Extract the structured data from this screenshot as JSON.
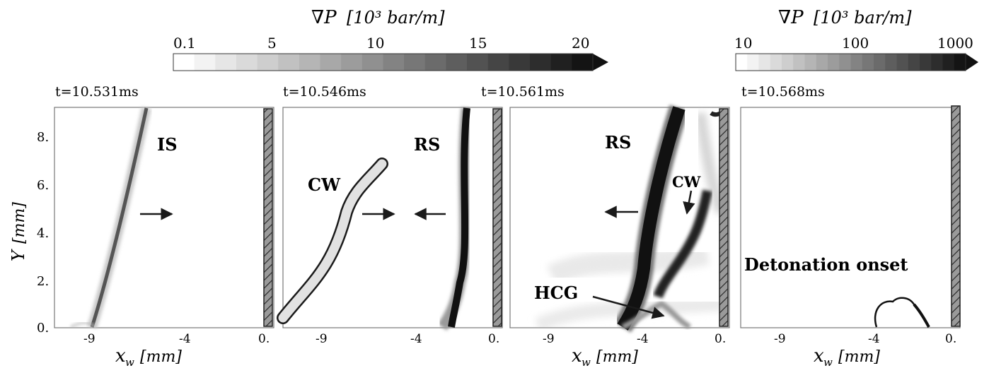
{
  "colorbar_left": {
    "title_symbol": "∇P",
    "title_units": "[10³ bar/m]",
    "ticks": [
      "0.1",
      "5",
      "10",
      "15",
      "20"
    ],
    "scale": "linear"
  },
  "colorbar_right": {
    "title_symbol": "∇P",
    "title_units": "[10³ bar/m]",
    "ticks": [
      "10",
      "100",
      "1000"
    ],
    "scale": "log"
  },
  "panels": [
    {
      "time": "t=10.531ms",
      "labels": [
        "IS"
      ]
    },
    {
      "time": "t=10.546ms",
      "labels": [
        "CW",
        "RS"
      ]
    },
    {
      "time": "t=10.561ms",
      "labels": [
        "RS",
        "CW",
        "HCG"
      ]
    },
    {
      "time": "t=10.568ms",
      "labels": [
        "Detonation onset"
      ]
    }
  ],
  "axes": {
    "ylabel_symbol": "Y",
    "ylabel_units": "[mm]",
    "xlabel_symbol": "x",
    "xlabel_sub": "w",
    "xlabel_units": "[mm]",
    "yticks": [
      "8.",
      "6.",
      "4.",
      "2.",
      "0."
    ],
    "xticks": [
      "-9",
      "-4",
      "0."
    ]
  },
  "colors": {
    "ink": "#1a1a1a",
    "wall_fill": "#9a9a9a",
    "cw_fill": "#e2e2e2"
  }
}
